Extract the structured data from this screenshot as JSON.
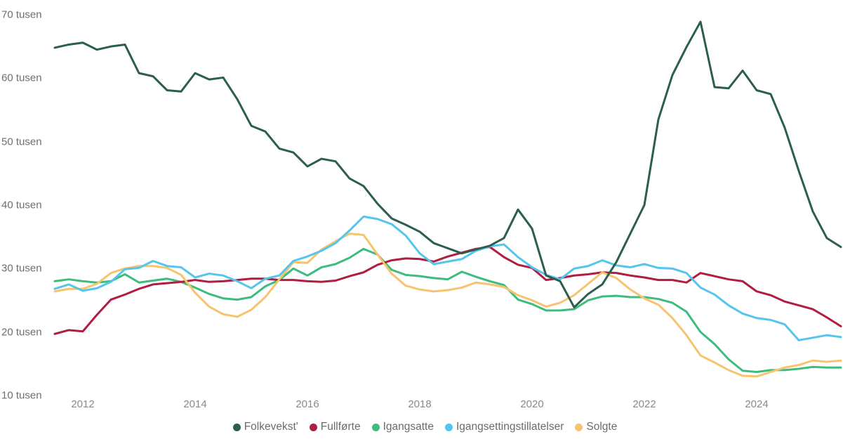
{
  "chart_data": {
    "type": "line",
    "title": "",
    "grid": false,
    "background": "#ffffff",
    "axis_text_color": "#6e6e6e",
    "legend_position": "bottom",
    "frequency": "quarterly",
    "ylim": [
      10,
      70
    ],
    "y_unit": "tusen",
    "y_ticks": [
      {
        "value": 10,
        "label": "10 tusen"
      },
      {
        "value": 20,
        "label": "20 tusen"
      },
      {
        "value": 30,
        "label": "30 tusen"
      },
      {
        "value": 40,
        "label": "40 tusen"
      },
      {
        "value": 50,
        "label": "50 tusen"
      },
      {
        "value": 60,
        "label": "60 tusen"
      },
      {
        "value": 70,
        "label": "70 tusen"
      }
    ],
    "x_ticks": [
      {
        "label": "2012",
        "index": 2
      },
      {
        "label": "2014",
        "index": 10
      },
      {
        "label": "2016",
        "index": 18
      },
      {
        "label": "2018",
        "index": 26
      },
      {
        "label": "2020",
        "index": 34
      },
      {
        "label": "2022",
        "index": 42
      },
      {
        "label": "2024",
        "index": 50
      }
    ],
    "series": [
      {
        "name": "Folkevekst'",
        "color": "#2c5e4f",
        "values": [
          64.8,
          65.3,
          65.6,
          64.5,
          65.0,
          65.3,
          60.8,
          60.3,
          58.1,
          57.9,
          60.8,
          59.8,
          60.1,
          56.7,
          52.5,
          51.6,
          48.9,
          48.3,
          46.1,
          47.3,
          46.9,
          44.2,
          43.0,
          40.2,
          37.9,
          36.9,
          35.8,
          34.0,
          33.2,
          32.4,
          33.0,
          33.6,
          34.8,
          39.3,
          36.3,
          28.9,
          28.0,
          23.9,
          26.0,
          27.5,
          31.0,
          35.5,
          40.0,
          53.5,
          60.5,
          64.9,
          68.9,
          58.6,
          58.4,
          61.2,
          58.1,
          57.5,
          52.2,
          45.4,
          39.0,
          34.8,
          33.4
        ]
      },
      {
        "name": "Fullførte",
        "color": "#b11d41",
        "values": [
          19.7,
          20.3,
          20.1,
          22.7,
          25.1,
          25.9,
          26.8,
          27.5,
          27.7,
          27.9,
          28.2,
          27.9,
          28.0,
          28.2,
          28.4,
          28.4,
          28.2,
          28.2,
          28.0,
          27.9,
          28.1,
          28.8,
          29.4,
          30.6,
          31.3,
          31.6,
          31.5,
          31.1,
          31.9,
          32.5,
          33.1,
          33.4,
          31.8,
          30.6,
          30.1,
          28.2,
          28.5,
          28.9,
          29.1,
          29.4,
          29.3,
          28.9,
          28.6,
          28.2,
          28.2,
          27.8,
          29.3,
          28.8,
          28.3,
          28.0,
          26.4,
          25.8,
          24.8,
          24.2,
          23.6,
          22.3,
          20.9
        ]
      },
      {
        "name": "Igangsatte",
        "color": "#3ebc7d",
        "values": [
          28.0,
          28.3,
          28.0,
          27.8,
          28.0,
          29.1,
          27.8,
          28.1,
          28.4,
          27.9,
          27.0,
          26.0,
          25.3,
          25.1,
          25.5,
          27.2,
          28.2,
          30.0,
          28.9,
          30.2,
          30.7,
          31.7,
          33.1,
          32.2,
          29.8,
          29.0,
          28.8,
          28.5,
          28.3,
          29.5,
          28.7,
          28.0,
          27.4,
          25.1,
          24.4,
          23.4,
          23.4,
          23.6,
          25.0,
          25.6,
          25.7,
          25.5,
          25.5,
          25.2,
          24.6,
          23.2,
          20.0,
          18.1,
          15.7,
          13.9,
          13.7,
          14.0,
          14.0,
          14.2,
          14.5,
          14.4,
          14.4
        ]
      },
      {
        "name": "Igangsettingstillatelser",
        "color": "#55c5ec",
        "values": [
          26.8,
          27.5,
          26.5,
          26.9,
          27.9,
          29.9,
          30.1,
          31.2,
          30.4,
          30.2,
          28.6,
          29.2,
          28.9,
          28.0,
          26.9,
          28.4,
          28.9,
          31.2,
          31.9,
          32.8,
          34.0,
          36.0,
          38.2,
          37.8,
          37.0,
          35.2,
          32.4,
          30.7,
          31.1,
          31.5,
          32.8,
          33.5,
          33.8,
          31.8,
          30.2,
          29.0,
          28.3,
          30.0,
          30.4,
          31.3,
          30.5,
          30.2,
          30.7,
          30.1,
          30.0,
          29.3,
          27.0,
          25.9,
          24.2,
          22.9,
          22.2,
          21.9,
          21.2,
          18.7,
          19.1,
          19.5,
          19.2
        ]
      },
      {
        "name": "Solgte",
        "color": "#f7c36e",
        "values": [
          26.4,
          26.8,
          26.8,
          27.6,
          29.3,
          30.0,
          30.4,
          30.4,
          30.1,
          29.0,
          26.2,
          24.0,
          22.8,
          22.4,
          23.5,
          25.5,
          28.3,
          31.0,
          30.9,
          33.0,
          34.3,
          35.5,
          35.3,
          32.2,
          29.2,
          27.3,
          26.7,
          26.4,
          26.6,
          27.0,
          27.8,
          27.5,
          27.1,
          25.8,
          25.0,
          24.0,
          24.6,
          25.8,
          27.6,
          29.4,
          28.5,
          26.7,
          25.3,
          24.3,
          22.2,
          19.5,
          16.3,
          15.2,
          14.0,
          13.1,
          13.0,
          13.7,
          14.4,
          14.8,
          15.5,
          15.3,
          15.5
        ]
      }
    ]
  }
}
